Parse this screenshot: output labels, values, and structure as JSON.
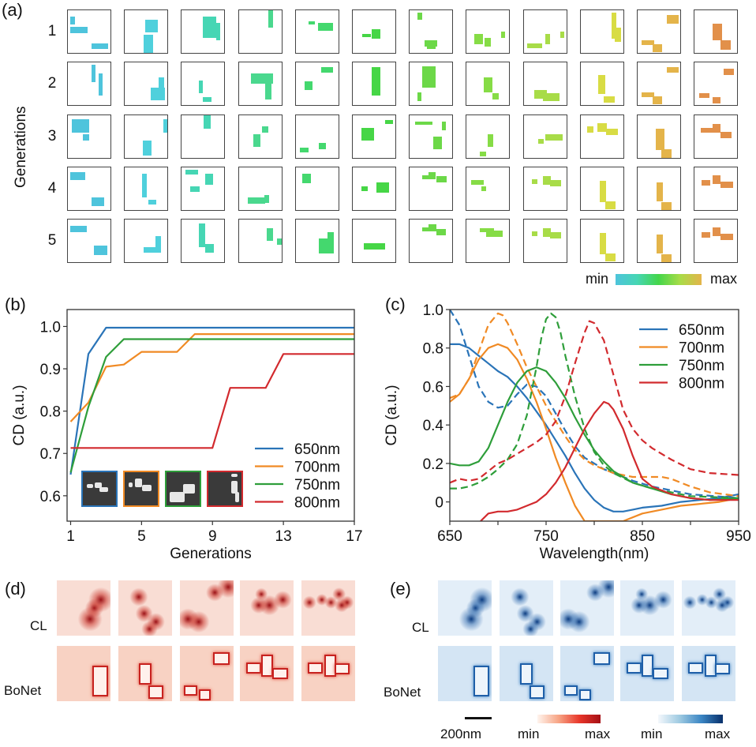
{
  "panel_a": {
    "label": "(a)",
    "ylabel": "Generations",
    "rows": [
      "1",
      "2",
      "3",
      "4",
      "5"
    ],
    "column_colors": [
      "#4ec4dc",
      "#4fd0dc",
      "#46d6b4",
      "#4ad88e",
      "#44d86e",
      "#46d646",
      "#6cd848",
      "#86dc46",
      "#a8dc48",
      "#d8dc44",
      "#e4b44a",
      "#e2904a"
    ],
    "colorbar": {
      "min_label": "min",
      "max_label": "max",
      "colors": [
        "#4ec4dc",
        "#46d6b4",
        "#44d64a",
        "#a8dc48",
        "#e4b44a"
      ]
    }
  },
  "panel_b": {
    "label": "(b)",
    "inset_frame_colors": [
      "#2a74b8",
      "#f08a24",
      "#2e9e3a",
      "#d22a2e"
    ]
  },
  "panel_c": {
    "label": "(c)"
  },
  "panel_d": {
    "label": "(d)",
    "row_labels": [
      "CL",
      "BoNet"
    ]
  },
  "panel_e": {
    "label": "(e)",
    "row_labels": [
      "CL",
      "BoNet"
    ],
    "scalebar_label": "200nm",
    "red_colorbar": {
      "min_label": "min",
      "max_label": "max"
    },
    "blue_colorbar": {
      "min_label": "min",
      "max_label": "max"
    }
  },
  "chart_data": [
    {
      "id": "b",
      "type": "line",
      "title": "",
      "xlabel": "Generations",
      "ylabel": "CD (a.u.)",
      "xlim": [
        0.8,
        17
      ],
      "ylim": [
        0.54,
        1.04
      ],
      "xticks": [
        1,
        5,
        9,
        13,
        17
      ],
      "yticks": [
        0.6,
        0.7,
        0.8,
        0.9,
        1.0
      ],
      "ytick_labels": [
        "0.6",
        "0.7",
        "0.8",
        "0.9",
        "1.0"
      ],
      "legend_position": "bottom-right",
      "series": [
        {
          "name": "650nm",
          "color": "#2a74b8",
          "x": [
            1,
            2,
            3,
            17
          ],
          "y": [
            0.65,
            0.935,
            0.997,
            0.997
          ]
        },
        {
          "name": "700nm",
          "color": "#f08a24",
          "x": [
            1,
            2,
            3,
            4,
            5,
            6,
            7,
            8,
            17
          ],
          "y": [
            0.775,
            0.82,
            0.905,
            0.91,
            0.94,
            0.94,
            0.94,
            0.982,
            0.982
          ]
        },
        {
          "name": "750nm",
          "color": "#2e9e3a",
          "x": [
            1,
            2,
            3,
            4,
            17
          ],
          "y": [
            0.655,
            0.81,
            0.928,
            0.97,
            0.97
          ]
        },
        {
          "name": "800nm",
          "color": "#d22a2e",
          "x": [
            1,
            9,
            10,
            12,
            13,
            17
          ],
          "y": [
            0.713,
            0.713,
            0.855,
            0.855,
            0.935,
            0.935
          ]
        }
      ]
    },
    {
      "id": "c",
      "type": "line",
      "title": "",
      "xlabel": "Wavelength(nm)",
      "ylabel": "CD (a.u.)",
      "xlim": [
        650,
        950
      ],
      "ylim": [
        -0.1,
        1.0
      ],
      "xticks": [
        650,
        700,
        750,
        800,
        850,
        900,
        950
      ],
      "xtick_labels": [
        "650",
        "",
        "750",
        "",
        "850",
        "",
        "950"
      ],
      "yticks": [
        0,
        0.2,
        0.4,
        0.6,
        0.8,
        1.0
      ],
      "ytick_labels": [
        "0",
        "0.2",
        "0.4",
        "0.6",
        "0.8",
        "1.0"
      ],
      "legend_position": "top-right",
      "note": "solid = measured, dashed = simulated",
      "series": [
        {
          "name": "650nm",
          "color": "#2a74b8",
          "style": "solid",
          "x": [
            650,
            660,
            670,
            680,
            690,
            700,
            710,
            720,
            730,
            740,
            750,
            760,
            770,
            780,
            790,
            800,
            810,
            820,
            830,
            840,
            850,
            870,
            890,
            910,
            930,
            950
          ],
          "y": [
            0.82,
            0.82,
            0.8,
            0.76,
            0.72,
            0.68,
            0.65,
            0.6,
            0.54,
            0.47,
            0.4,
            0.32,
            0.24,
            0.15,
            0.07,
            0.01,
            -0.03,
            -0.05,
            -0.05,
            -0.04,
            -0.03,
            -0.02,
            0.0,
            0.01,
            0.02,
            0.04
          ]
        },
        {
          "name": "650nm-sim",
          "color": "#2a74b8",
          "style": "dashed",
          "x": [
            650,
            660,
            670,
            680,
            690,
            700,
            710,
            720,
            730,
            740,
            750,
            760,
            770,
            780,
            790,
            800,
            810,
            820,
            840,
            860,
            880,
            900,
            950
          ],
          "y": [
            1.0,
            0.92,
            0.76,
            0.6,
            0.52,
            0.49,
            0.5,
            0.56,
            0.61,
            0.6,
            0.55,
            0.46,
            0.37,
            0.29,
            0.23,
            0.2,
            0.17,
            0.15,
            0.11,
            0.08,
            0.06,
            0.04,
            0.02
          ]
        },
        {
          "name": "700nm",
          "color": "#f08a24",
          "style": "solid",
          "x": [
            650,
            660,
            670,
            680,
            690,
            700,
            710,
            720,
            730,
            740,
            750,
            760,
            770,
            780,
            790,
            830,
            850,
            870,
            890,
            910,
            930,
            950
          ],
          "y": [
            0.52,
            0.56,
            0.64,
            0.74,
            0.8,
            0.82,
            0.8,
            0.74,
            0.64,
            0.52,
            0.38,
            0.23,
            0.1,
            -0.02,
            -0.1,
            -0.1,
            -0.06,
            -0.04,
            -0.02,
            -0.01,
            0.0,
            0.02
          ]
        },
        {
          "name": "700nm-sim",
          "color": "#f08a24",
          "style": "dashed",
          "x": [
            650,
            660,
            670,
            680,
            690,
            700,
            705,
            710,
            720,
            730,
            740,
            750,
            760,
            770,
            780,
            790,
            800,
            810,
            820,
            840,
            860,
            870,
            880,
            900,
            920,
            950
          ],
          "y": [
            0.54,
            0.56,
            0.64,
            0.78,
            0.92,
            0.98,
            0.97,
            0.93,
            0.82,
            0.7,
            0.6,
            0.5,
            0.42,
            0.34,
            0.27,
            0.22,
            0.19,
            0.17,
            0.15,
            0.13,
            0.13,
            0.13,
            0.12,
            0.08,
            0.05,
            0.03
          ]
        },
        {
          "name": "750nm",
          "color": "#2e9e3a",
          "style": "solid",
          "x": [
            650,
            660,
            670,
            680,
            690,
            700,
            710,
            720,
            730,
            740,
            750,
            760,
            770,
            780,
            790,
            800,
            810,
            820,
            840,
            860,
            880,
            900,
            920,
            950
          ],
          "y": [
            0.2,
            0.19,
            0.19,
            0.21,
            0.28,
            0.4,
            0.52,
            0.62,
            0.68,
            0.7,
            0.68,
            0.62,
            0.54,
            0.44,
            0.35,
            0.27,
            0.21,
            0.16,
            0.1,
            0.07,
            0.04,
            0.02,
            0.01,
            0.02
          ]
        },
        {
          "name": "750nm-sim",
          "color": "#2e9e3a",
          "style": "dashed",
          "x": [
            650,
            660,
            670,
            680,
            690,
            700,
            710,
            720,
            730,
            740,
            745,
            750,
            755,
            760,
            765,
            770,
            780,
            790,
            800,
            810,
            820,
            840,
            860,
            880,
            900,
            950
          ],
          "y": [
            0.07,
            0.07,
            0.08,
            0.1,
            0.13,
            0.17,
            0.22,
            0.3,
            0.45,
            0.7,
            0.85,
            0.95,
            0.98,
            0.96,
            0.88,
            0.76,
            0.55,
            0.38,
            0.26,
            0.19,
            0.15,
            0.1,
            0.07,
            0.05,
            0.03,
            0.02
          ]
        },
        {
          "name": "800nm",
          "color": "#d22a2e",
          "style": "solid",
          "x": [
            682,
            690,
            700,
            710,
            720,
            730,
            740,
            750,
            760,
            770,
            780,
            790,
            800,
            810,
            815,
            820,
            830,
            840,
            850,
            860,
            870,
            880,
            900,
            920,
            950
          ],
          "y": [
            -0.1,
            -0.06,
            -0.05,
            -0.05,
            -0.04,
            -0.02,
            0.0,
            0.04,
            0.1,
            0.18,
            0.28,
            0.38,
            0.46,
            0.52,
            0.51,
            0.48,
            0.38,
            0.24,
            0.12,
            0.08,
            0.06,
            0.04,
            0.02,
            0.01,
            0.01
          ]
        },
        {
          "name": "800nm-sim",
          "color": "#d22a2e",
          "style": "dashed",
          "x": [
            650,
            660,
            670,
            680,
            690,
            700,
            710,
            720,
            730,
            740,
            750,
            760,
            770,
            780,
            790,
            795,
            800,
            810,
            820,
            830,
            840,
            850,
            860,
            880,
            900,
            920,
            950
          ],
          "y": [
            0.1,
            0.12,
            0.11,
            0.12,
            0.16,
            0.2,
            0.22,
            0.25,
            0.28,
            0.31,
            0.35,
            0.42,
            0.55,
            0.72,
            0.88,
            0.94,
            0.93,
            0.84,
            0.66,
            0.48,
            0.38,
            0.32,
            0.28,
            0.22,
            0.17,
            0.15,
            0.14
          ]
        }
      ]
    }
  ]
}
